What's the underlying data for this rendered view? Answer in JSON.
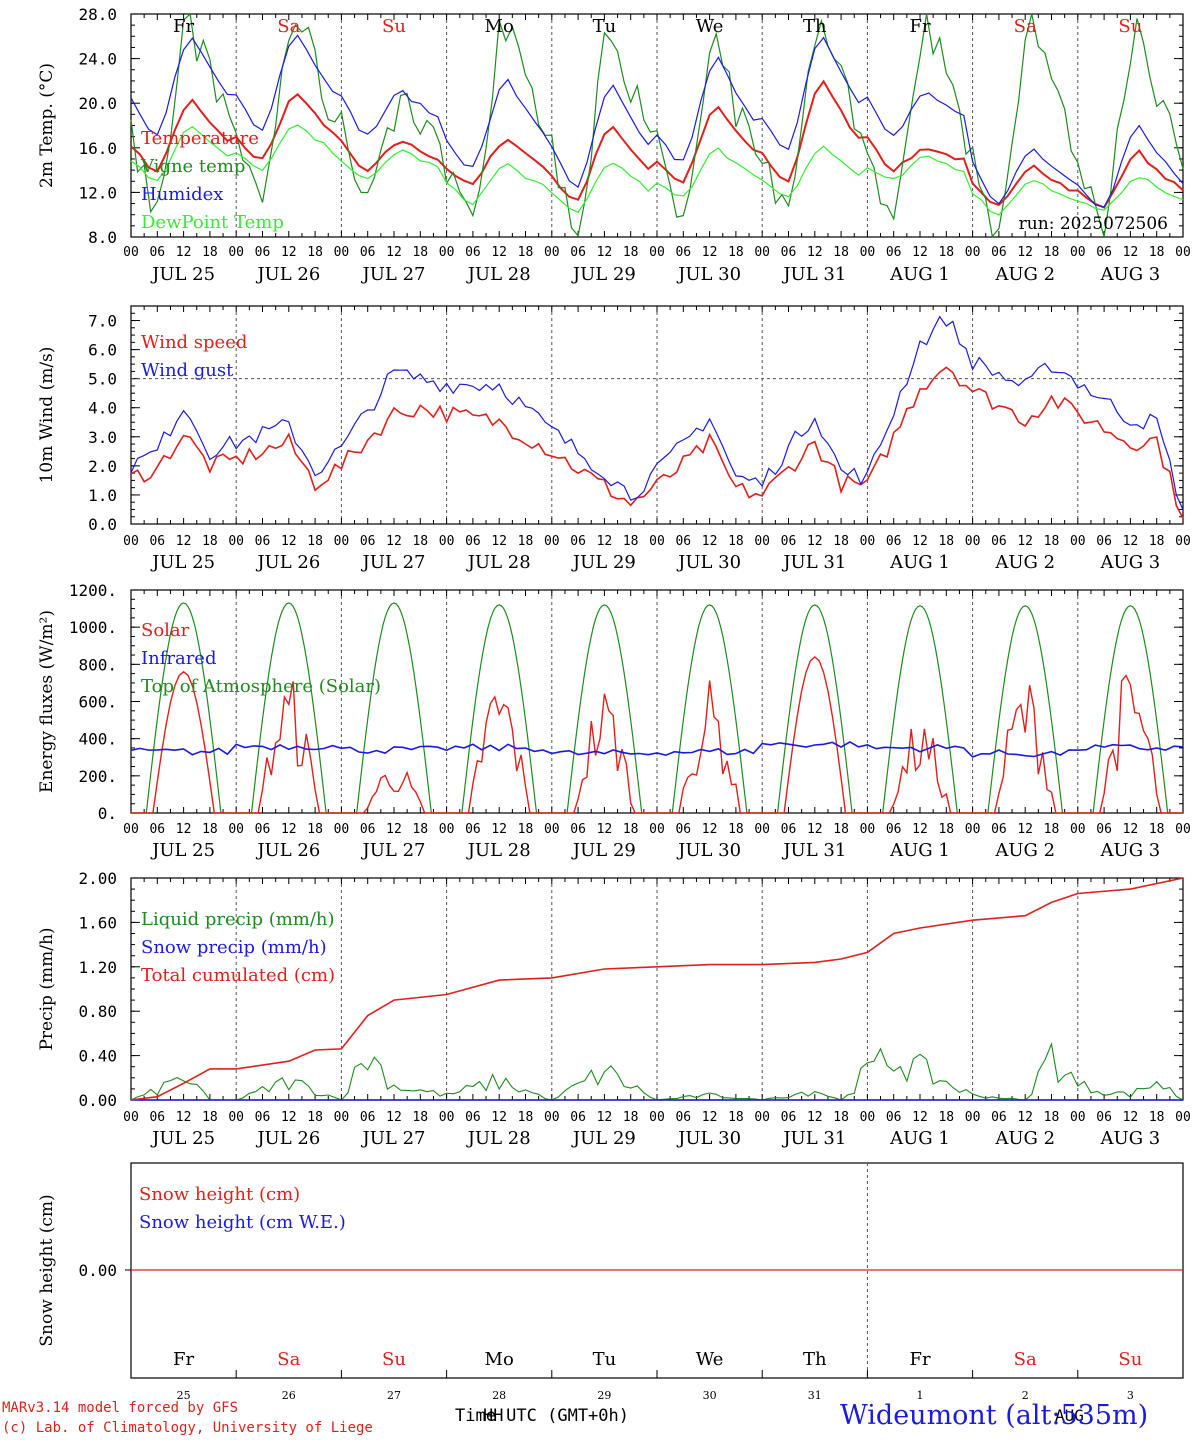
{
  "days": [
    {
      "dow": "Fr",
      "dow_color": "#000000",
      "date": "JUL 25",
      "daynum": "25"
    },
    {
      "dow": "Sa",
      "dow_color": "#e0201a",
      "date": "JUL 26",
      "daynum": "26"
    },
    {
      "dow": "Su",
      "dow_color": "#e0201a",
      "date": "JUL 27",
      "daynum": "27"
    },
    {
      "dow": "Mo",
      "dow_color": "#000000",
      "date": "JUL 28",
      "daynum": "28"
    },
    {
      "dow": "Tu",
      "dow_color": "#000000",
      "date": "JUL 29",
      "daynum": "29"
    },
    {
      "dow": "We",
      "dow_color": "#000000",
      "date": "JUL 30",
      "daynum": "30"
    },
    {
      "dow": "Th",
      "dow_color": "#000000",
      "date": "JUL 31",
      "daynum": "31"
    },
    {
      "dow": "Fr",
      "dow_color": "#000000",
      "date": "AUG  1",
      "daynum": "1"
    },
    {
      "dow": "Sa",
      "dow_color": "#e0201a",
      "date": "AUG  2",
      "daynum": "2"
    },
    {
      "dow": "Su",
      "dow_color": "#e0201a",
      "date": "AUG  3",
      "daynum": "3"
    }
  ],
  "hour_ticks": [
    "00",
    "06",
    "12",
    "18"
  ],
  "end_tick": "00",
  "run_label": "run: 2025072506",
  "aug_label": "AUG",
  "colors": {
    "red": "#e0201a",
    "green": "#1f8a1f",
    "blue": "#1a1ae0",
    "light_green": "#33ee33",
    "grid": "#555555"
  },
  "chart_data": [
    {
      "type": "line",
      "ylabel": "2m Temp. (°C)",
      "ylim": [
        8,
        28
      ],
      "yticks": [
        "8.0",
        "12.0",
        "16.0",
        "20.0",
        "24.0",
        "28.0"
      ],
      "x_unit": "hours since JUL 25 00 UTC",
      "series": [
        {
          "name": "Temperature",
          "color": "red",
          "hourly_profile": {
            "min_hour": 5,
            "max_hour": 14
          },
          "daily_min": [
            13.8,
            14.8,
            13.8,
            12.6,
            11.2,
            12.8,
            12.8,
            14.0,
            10.6,
            10.6
          ],
          "daily_max": [
            20.2,
            20.8,
            16.6,
            16.8,
            18.0,
            19.6,
            22.0,
            16.0,
            14.5,
            15.6
          ]
        },
        {
          "name": "Vigne temp",
          "color": "green",
          "hourly_profile": {
            "min_hour": 5,
            "max_hour": 14
          },
          "daily_min": [
            10.5,
            11.0,
            11.5,
            10.0,
            8.0,
            9.5,
            10.0,
            9.5,
            8.0,
            8.0
          ],
          "daily_max": [
            28.0,
            28.0,
            21.0,
            28.0,
            28.0,
            24.0,
            28.0,
            28.0,
            28.0,
            28.0
          ]
        },
        {
          "name": "Humidex",
          "color": "blue",
          "hourly_profile": {
            "min_hour": 5,
            "max_hour": 14
          },
          "daily_min": [
            16.8,
            17.5,
            17.0,
            14.0,
            12.2,
            14.5,
            15.5,
            17.0,
            10.8,
            10.5
          ],
          "daily_max": [
            26.0,
            26.2,
            21.0,
            22.0,
            21.5,
            24.0,
            26.0,
            21.0,
            16.0,
            18.0
          ]
        },
        {
          "name": "DewPoint Temp",
          "color": "light_green",
          "hourly_profile": {
            "min_hour": 5,
            "max_hour": 14
          },
          "daily_min": [
            13.0,
            14.0,
            13.0,
            11.0,
            10.2,
            11.5,
            11.5,
            13.0,
            10.0,
            10.2
          ],
          "daily_max": [
            18.0,
            18.0,
            15.8,
            14.5,
            14.8,
            16.0,
            16.2,
            15.2,
            13.2,
            13.5
          ]
        }
      ]
    },
    {
      "type": "line",
      "ylabel": "10m Wind (m/s)",
      "ylim": [
        0,
        7.5
      ],
      "yticks": [
        "0.0",
        "1.0",
        "2.0",
        "3.0",
        "4.0",
        "5.0",
        "6.0",
        "7.0"
      ],
      "reference_line": 5.0,
      "x_unit": "hours since JUL 25 00 UTC",
      "series": [
        {
          "name": "Wind speed",
          "color": "red",
          "x": [
            0,
            6,
            12,
            18,
            24,
            36,
            42,
            48,
            60,
            66,
            72,
            84,
            96,
            108,
            114,
            120,
            132,
            138,
            144,
            156,
            162,
            168,
            180,
            186,
            192,
            204,
            210,
            216,
            228,
            234,
            240
          ],
          "values": [
            1.6,
            1.9,
            3.1,
            2.0,
            2.2,
            2.8,
            1.4,
            2.0,
            3.8,
            4.0,
            3.8,
            3.5,
            2.5,
            1.3,
            0.7,
            1.3,
            2.8,
            1.2,
            1.0,
            2.8,
            1.4,
            1.3,
            4.7,
            5.5,
            4.6,
            3.6,
            4.3,
            3.8,
            2.8,
            2.9,
            0.2
          ]
        },
        {
          "name": "Wind gust",
          "color": "blue",
          "x": [
            0,
            6,
            12,
            18,
            24,
            36,
            42,
            48,
            60,
            66,
            72,
            84,
            96,
            108,
            114,
            120,
            132,
            138,
            144,
            156,
            162,
            168,
            180,
            186,
            192,
            204,
            210,
            216,
            228,
            234,
            240
          ],
          "values": [
            2.0,
            2.5,
            4.1,
            2.5,
            2.8,
            3.4,
            1.8,
            2.6,
            5.2,
            5.0,
            4.8,
            4.8,
            3.2,
            1.8,
            1.0,
            1.8,
            3.7,
            1.6,
            1.4,
            3.8,
            1.8,
            1.6,
            6.2,
            7.1,
            5.6,
            4.7,
            5.5,
            4.9,
            3.6,
            3.5,
            0.5
          ]
        }
      ]
    },
    {
      "type": "line",
      "ylabel": "Energy fluxes (W/m²)",
      "ylim": [
        0,
        1200
      ],
      "yticks": [
        "0.",
        "200.",
        "400.",
        "600.",
        "800.",
        "1000.",
        "1200."
      ],
      "x_unit": "hours since JUL 25 00 UTC",
      "series": [
        {
          "name": "Solar",
          "color": "red",
          "daily_peak": [
            760,
            750,
            290,
            780,
            700,
            720,
            840,
            520,
            760,
            810
          ]
        },
        {
          "name": "Infrared",
          "color": "blue",
          "daily_mean": [
            330,
            360,
            340,
            350,
            320,
            330,
            370,
            350,
            320,
            350
          ]
        },
        {
          "name": "Top of Atmosphere (Solar)",
          "color": "green",
          "daily_peak": [
            1130,
            1130,
            1130,
            1120,
            1120,
            1120,
            1120,
            1115,
            1115,
            1115
          ],
          "day_start_hour": 3.5,
          "day_end_hour": 20.5
        }
      ]
    },
    {
      "type": "line",
      "ylabel": "Precip (mm/h)",
      "ylim": [
        0,
        2
      ],
      "yticks": [
        "0.00",
        "0.40",
        "0.80",
        "1.20",
        "1.60",
        "2.00"
      ],
      "x_unit": "hours since JUL 25 00 UTC",
      "series": [
        {
          "name": "Liquid precip (mm/h)",
          "color": "green",
          "x": [
            0,
            6,
            12,
            18,
            24,
            36,
            48,
            54,
            60,
            72,
            84,
            96,
            108,
            120,
            132,
            144,
            156,
            162,
            168,
            174,
            192,
            204,
            210,
            216,
            228,
            234,
            240
          ],
          "values": [
            0.0,
            0.1,
            0.25,
            0.0,
            0.0,
            0.2,
            0.0,
            0.5,
            0.15,
            0.05,
            0.2,
            0.0,
            0.3,
            0.0,
            0.05,
            0.0,
            0.1,
            0.0,
            0.3,
            0.45,
            0.05,
            0.0,
            0.48,
            0.15,
            0.05,
            0.2,
            0.0
          ]
        },
        {
          "name": "Snow precip (mm/h)",
          "color": "blue",
          "x": [
            0,
            240
          ],
          "values": [
            0,
            0
          ]
        },
        {
          "name": "Total cumulated (cm)",
          "color": "red",
          "x": [
            0,
            6,
            12,
            18,
            24,
            36,
            42,
            48,
            54,
            60,
            72,
            84,
            96,
            108,
            120,
            132,
            144,
            156,
            162,
            168,
            174,
            180,
            192,
            204,
            210,
            216,
            228,
            240
          ],
          "values": [
            0.0,
            0.03,
            0.15,
            0.28,
            0.28,
            0.35,
            0.45,
            0.46,
            0.76,
            0.9,
            0.95,
            1.08,
            1.1,
            1.18,
            1.2,
            1.22,
            1.22,
            1.24,
            1.27,
            1.33,
            1.5,
            1.55,
            1.62,
            1.66,
            1.78,
            1.86,
            1.9,
            2.0
          ]
        }
      ]
    },
    {
      "type": "line",
      "ylabel": "Snow height (cm)",
      "ytick": "0.00",
      "x_unit": "hours since JUL 25 00 UTC",
      "series": [
        {
          "name": "Snow height (cm)",
          "color": "red",
          "x": [
            0,
            240
          ],
          "values": [
            0,
            0
          ]
        },
        {
          "name": "Snow height (cm W.E.)",
          "color": "blue",
          "x": [
            0,
            240
          ],
          "values": [
            0,
            0
          ]
        }
      ]
    }
  ],
  "footer": {
    "model_line": "MARv3.14 model forced by GFS",
    "lab_line": "(c) Lab. of Climatology, University of Liege",
    "axis_title": "Time UTC (GMT+0h)",
    "axis_title_overlap": "HH",
    "station": "Wideumont (alt:535m)"
  }
}
